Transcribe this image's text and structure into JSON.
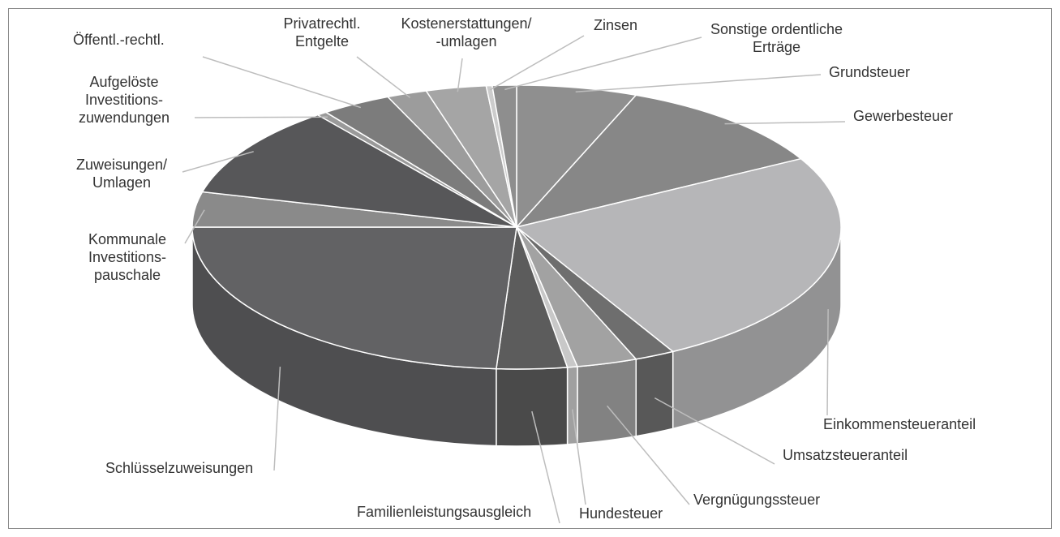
{
  "chart_data": {
    "type": "pie3d",
    "categories": [
      "Grundsteuer",
      "Gewerbesteuer",
      "Einkommensteueranteil",
      "Umsatzsteueranteil",
      "Vergnügungssteuer",
      "Hundesteuer",
      "Familienleistungsausgleich",
      "Schlüsselzuweisungen",
      "Kommunale\nInvestitions-\npauschale",
      "Zuweisungen/\nUmlagen",
      "Aufgelöste\nInvestitions-\nzuwendungen",
      "Öffentl.-rechtl.",
      "Privatrechtl.\nEntgelte",
      "Kostenerstattungen/\n-umlagen",
      "Zinsen",
      "Sonstige ordentliche\nErträge"
    ],
    "values": [
      6,
      11,
      25,
      2,
      3,
      0.5,
      3.5,
      24,
      4,
      10.5,
      0.5,
      3.5,
      2,
      3,
      0.3,
      1.2
    ],
    "colors": [
      "#8f8f8f",
      "#878787",
      "#b6b6b8",
      "#6e6e6e",
      "#a2a2a2",
      "#c8c8c8",
      "#5c5c5c",
      "#626264",
      "#8a8a8a",
      "#575759",
      "#9a9a9a",
      "#7c7c7c",
      "#9c9c9c",
      "#a5a5a5",
      "#cccccc",
      "#8e8e8e"
    ]
  }
}
